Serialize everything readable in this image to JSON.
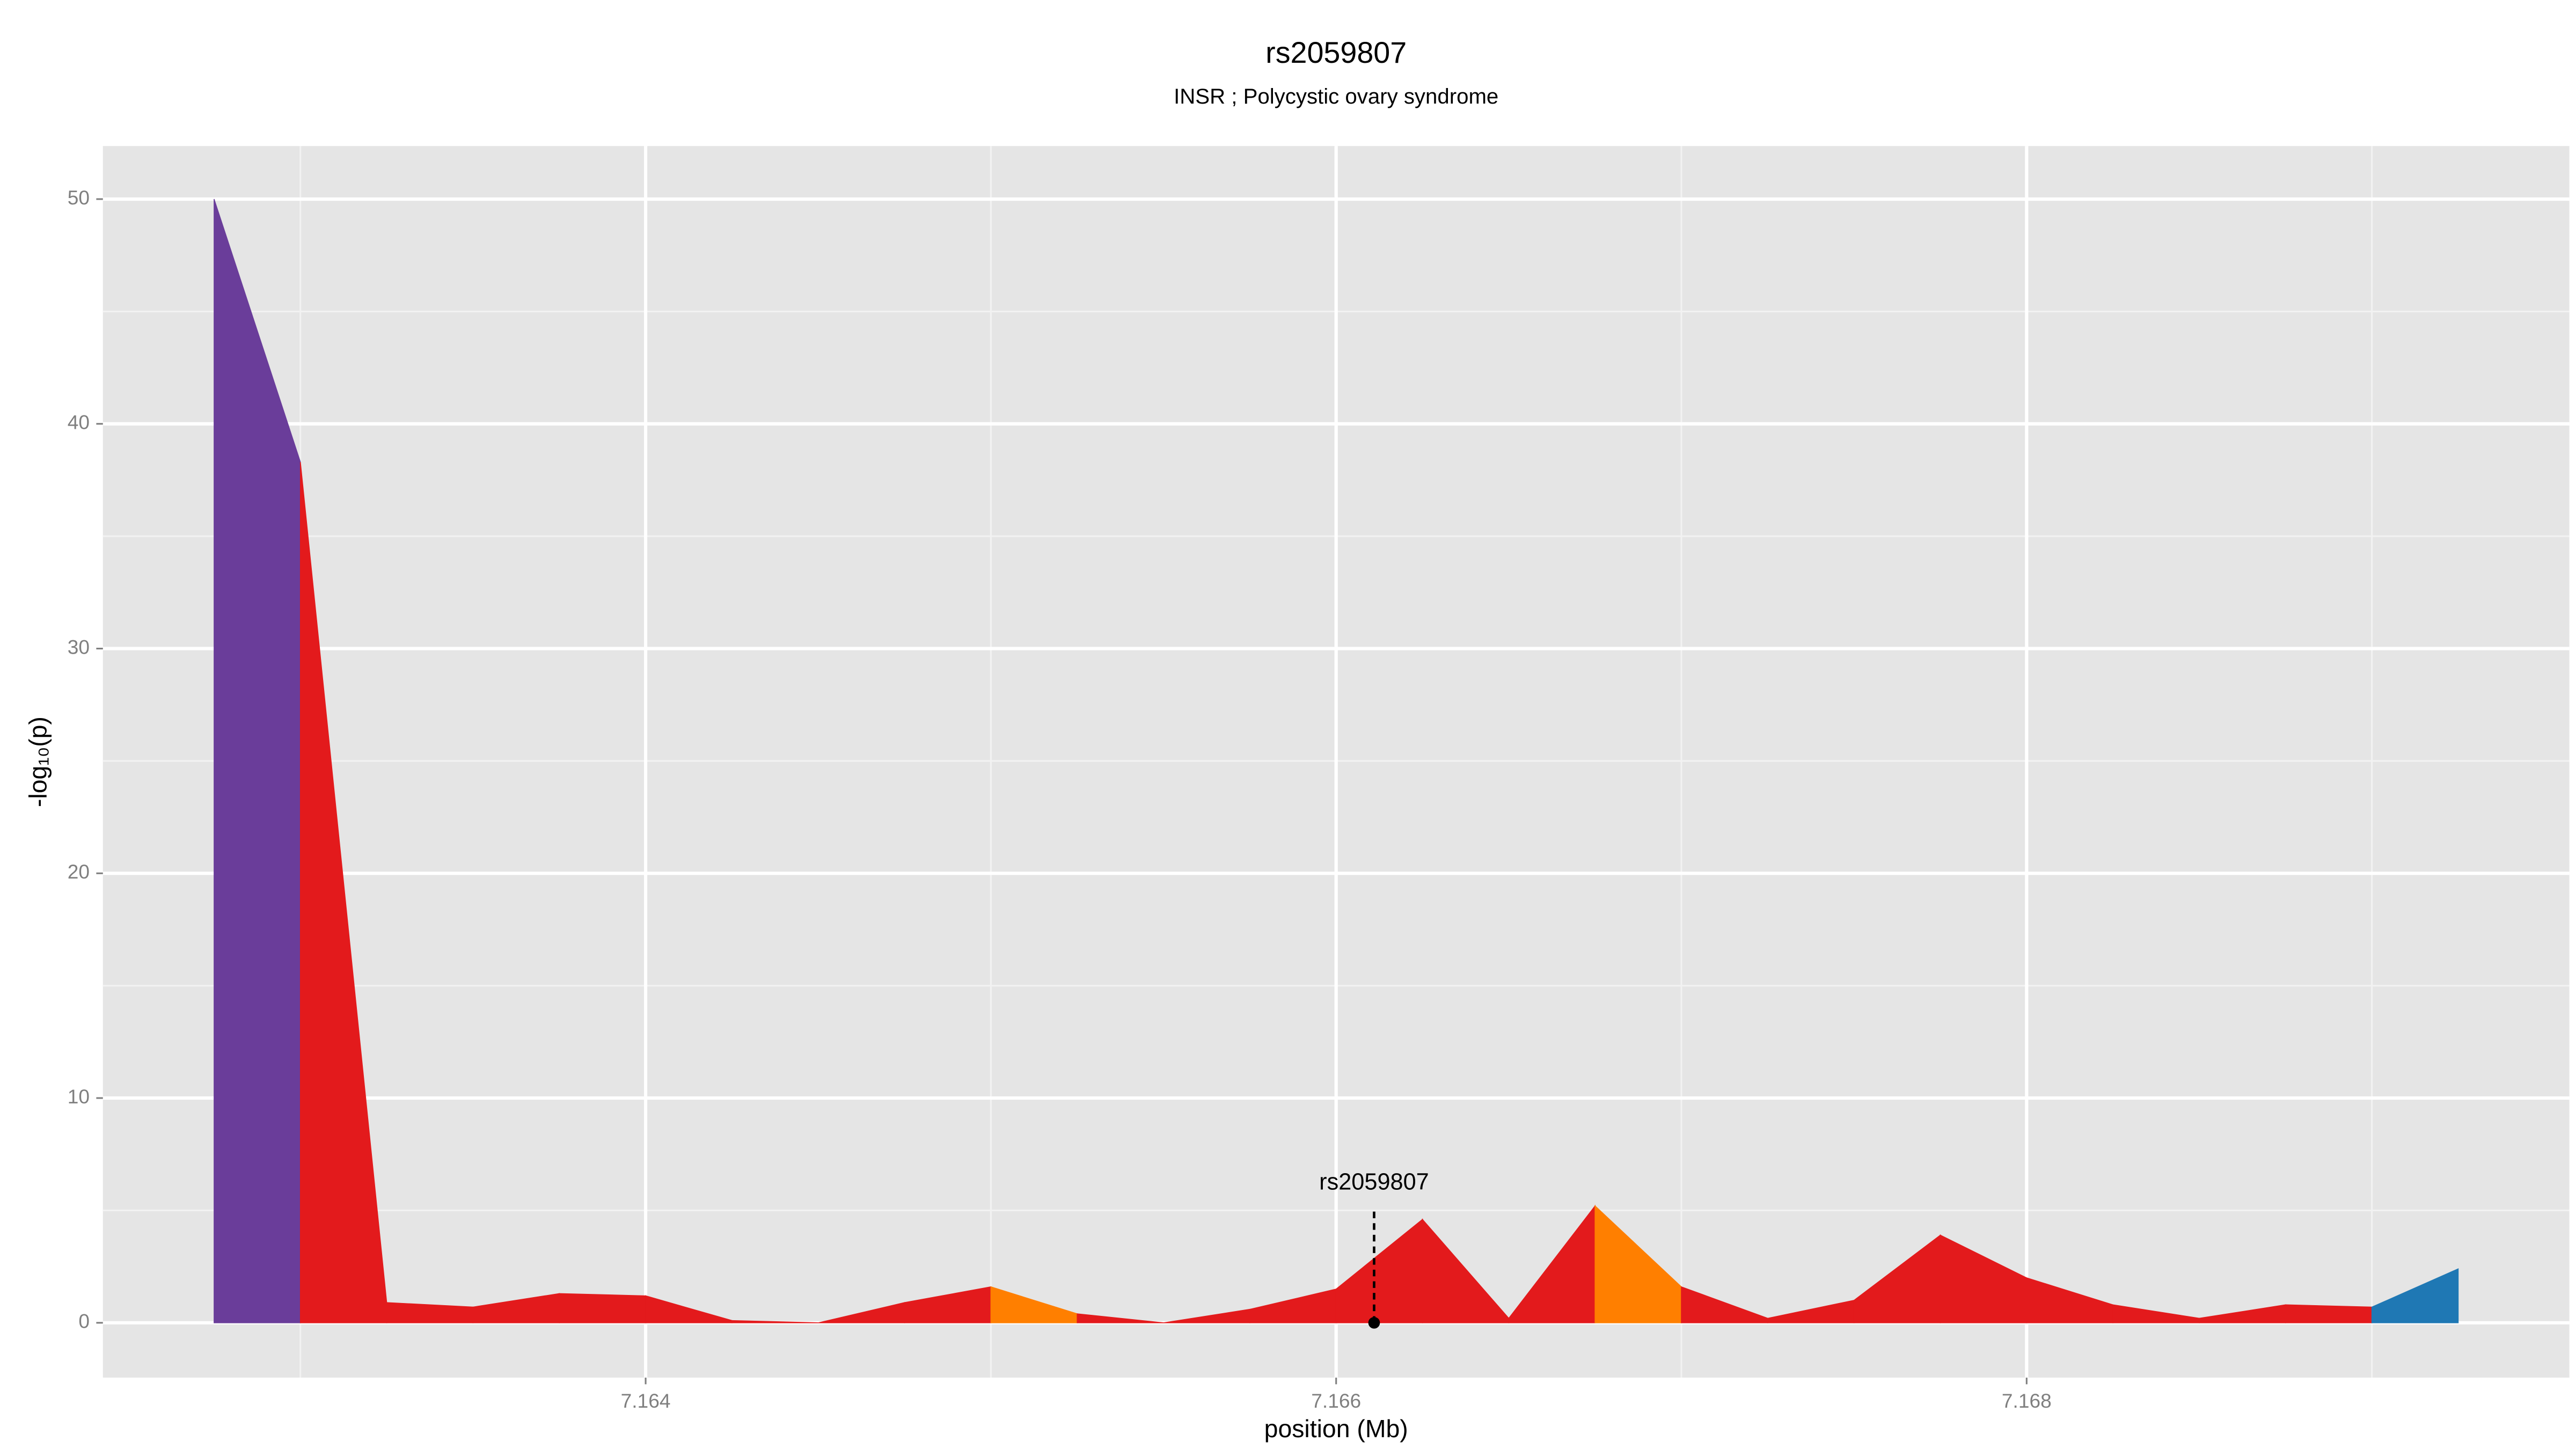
{
  "chart_data": {
    "type": "area",
    "title": "rs2059807",
    "subtitle": "INSR ; Polycystic ovary syndrome",
    "xlabel": "position (Mb)",
    "ylabel": "-log₁₀(p)",
    "x": [
      7.16275,
      7.163,
      7.16325,
      7.1635,
      7.16375,
      7.164,
      7.16425,
      7.1645,
      7.16475,
      7.165,
      7.16525,
      7.1655,
      7.16575,
      7.166,
      7.16625,
      7.1665,
      7.16675,
      7.167,
      7.16725,
      7.1675,
      7.16775,
      7.168,
      7.16825,
      7.1685,
      7.16875,
      7.169,
      7.16925
    ],
    "values": [
      50,
      38.3,
      0.9,
      0.7,
      1.3,
      1.2,
      0.1,
      0.0,
      0.9,
      1.6,
      0.4,
      0.0,
      0.6,
      1.5,
      4.6,
      0.2,
      5.2,
      1.6,
      0.2,
      1.0,
      3.9,
      2.0,
      0.8,
      0.2,
      0.8,
      0.7,
      2.4
    ],
    "segment_colors": [
      "#6a3d9a",
      "#e31a1c",
      "#e31a1c",
      "#e31a1c",
      "#e31a1c",
      "#e31a1c",
      "#e31a1c",
      "#e31a1c",
      "#e31a1c",
      "#ff7f00",
      "#e31a1c",
      "#e31a1c",
      "#e31a1c",
      "#e31a1c",
      "#e31a1c",
      "#e31a1c",
      "#ff7f00",
      "#e31a1c",
      "#e31a1c",
      "#e31a1c",
      "#e31a1c",
      "#e31a1c",
      "#e31a1c",
      "#e31a1c",
      "#e31a1c",
      "#1f78b4"
    ],
    "annotation": {
      "text": "rs2059807",
      "x": 7.16611,
      "y": 0
    },
    "xlim": [
      7.162428,
      7.169572
    ],
    "xticks": [
      7.164,
      7.166,
      7.168
    ],
    "ylim": [
      -2.44,
      52.36
    ],
    "yticks": [
      0,
      10,
      20,
      30,
      40,
      50
    ],
    "grid": true
  }
}
